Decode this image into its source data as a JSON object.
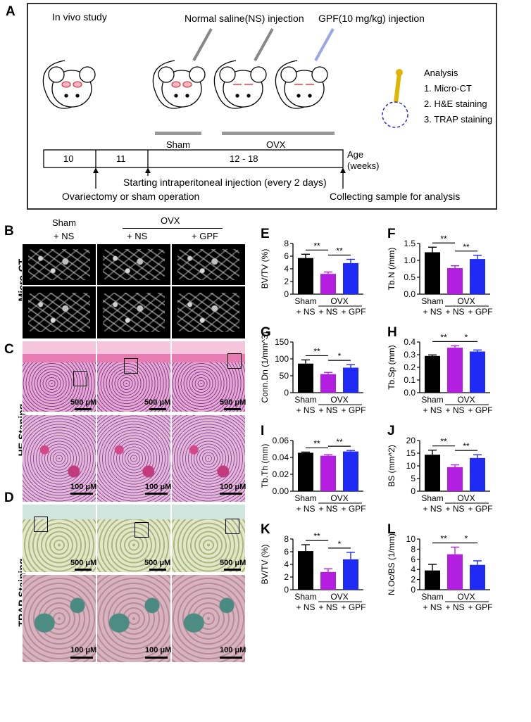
{
  "panel_a": {
    "label": "A",
    "in_vivo": "In vivo study",
    "ns_injection": "Normal saline(NS) injection",
    "gpf_injection": "GPF(10 mg/kg) injection",
    "analysis_title": "Analysis",
    "analysis_items": [
      "1. Micro-CT",
      "2. H&E staining",
      "3. TRAP staining"
    ],
    "sham": "Sham",
    "ovx": "OVX",
    "timeline": [
      "10",
      "11",
      "12 - 18"
    ],
    "age": "Age",
    "weeks": "(weeks)",
    "injection_note": "Starting intraperitoneal injection (every 2 days)",
    "surgery_note": "Ovariectomy or sham operation",
    "collect_note": "Collecting sample for analysis"
  },
  "images": {
    "label_b": "B",
    "label_c": "C",
    "label_d": "D",
    "sham_line1": "Sham",
    "sham_line2": "+ NS",
    "ovx": "OVX",
    "ovx_ns": "+ NS",
    "ovx_gpf": "+ GPF",
    "row_microct": "Micro-CT",
    "row_he": "HE Staning",
    "row_trap": "TRAP Staining",
    "scale_500": "500 μM",
    "scale_100": "100 μM"
  },
  "chart_data": [
    {
      "id": "E",
      "type": "bar",
      "categories": [
        "Sham + NS",
        "OVX + NS",
        "OVX + GPF"
      ],
      "values": [
        5.7,
        3.2,
        4.9
      ],
      "errors": [
        0.6,
        0.3,
        0.6
      ],
      "ylabel": "BV/TV (%)",
      "ylim": [
        0,
        8
      ],
      "yticks": [
        "0",
        "2",
        "4",
        "6",
        "8"
      ],
      "colors": [
        "#000000",
        "#b31fe0",
        "#1f2bf5"
      ],
      "sig": [
        {
          "from": 0,
          "to": 1,
          "label": "**"
        },
        {
          "from": 1,
          "to": 2,
          "label": "**"
        }
      ]
    },
    {
      "id": "F",
      "type": "bar",
      "categories": [
        "Sham + NS",
        "OVX + NS",
        "OVX + GPF"
      ],
      "values": [
        1.24,
        0.77,
        1.04
      ],
      "errors": [
        0.15,
        0.07,
        0.11
      ],
      "ylabel": "Tb.N (/mm)",
      "ylim": [
        0,
        1.5
      ],
      "yticks": [
        "0.0",
        "0.5",
        "1.0",
        "1.5"
      ],
      "colors": [
        "#000000",
        "#b31fe0",
        "#1f2bf5"
      ],
      "sig": [
        {
          "from": 0,
          "to": 1,
          "label": "**"
        },
        {
          "from": 1,
          "to": 2,
          "label": "**"
        }
      ]
    },
    {
      "id": "G",
      "type": "bar",
      "categories": [
        "Sham + NS",
        "OVX + NS",
        "OVX + GPF"
      ],
      "values": [
        86,
        55,
        74
      ],
      "errors": [
        11,
        5,
        9
      ],
      "ylabel": "Conn.Dn (1/mm^3)",
      "ylim": [
        0,
        150
      ],
      "yticks": [
        "0",
        "50",
        "100",
        "150"
      ],
      "colors": [
        "#000000",
        "#b31fe0",
        "#1f2bf5"
      ],
      "sig": [
        {
          "from": 0,
          "to": 1,
          "label": "**"
        },
        {
          "from": 1,
          "to": 2,
          "label": "*"
        }
      ]
    },
    {
      "id": "H",
      "type": "bar",
      "categories": [
        "Sham + NS",
        "OVX + NS",
        "OVX + GPF"
      ],
      "values": [
        0.29,
        0.355,
        0.325
      ],
      "errors": [
        0.008,
        0.015,
        0.012
      ],
      "ylabel": "Tb.Sp (mm)",
      "ylim": [
        0,
        0.4
      ],
      "yticks": [
        "0.0",
        "0.1",
        "0.2",
        "0.3",
        "0.4"
      ],
      "colors": [
        "#000000",
        "#b31fe0",
        "#1f2bf5"
      ],
      "sig": [
        {
          "from": 0,
          "to": 1,
          "label": "**"
        },
        {
          "from": 1,
          "to": 2,
          "label": "*"
        }
      ]
    },
    {
      "id": "I",
      "type": "bar",
      "categories": [
        "Sham + NS",
        "OVX + NS",
        "OVX + GPF"
      ],
      "values": [
        0.0455,
        0.042,
        0.047
      ],
      "errors": [
        0.0008,
        0.0012,
        0.0012
      ],
      "ylabel": "Tb.Th (mm)",
      "ylim": [
        0,
        0.06
      ],
      "yticks": [
        "0.00",
        "0.02",
        "0.04",
        "0.06"
      ],
      "colors": [
        "#000000",
        "#b31fe0",
        "#1f2bf5"
      ],
      "sig": [
        {
          "from": 0,
          "to": 1,
          "label": "**"
        },
        {
          "from": 1,
          "to": 2,
          "label": "**"
        }
      ]
    },
    {
      "id": "J",
      "type": "bar",
      "categories": [
        "Sham + NS",
        "OVX + NS",
        "OVX + GPF"
      ],
      "values": [
        14.4,
        9.5,
        13.1
      ],
      "errors": [
        1.8,
        0.9,
        1.3
      ],
      "ylabel": "BS (mm^2)",
      "ylim": [
        0,
        20
      ],
      "yticks": [
        "0",
        "5",
        "10",
        "15",
        "20"
      ],
      "colors": [
        "#000000",
        "#b31fe0",
        "#1f2bf5"
      ],
      "sig": [
        {
          "from": 0,
          "to": 1,
          "label": "**"
        },
        {
          "from": 1,
          "to": 2,
          "label": "**"
        }
      ]
    },
    {
      "id": "K",
      "type": "bar",
      "categories": [
        "Sham + NS",
        "OVX + NS",
        "OVX + GPF"
      ],
      "values": [
        6.1,
        2.8,
        4.8
      ],
      "errors": [
        1.0,
        0.5,
        1.1
      ],
      "ylabel": "BV/TV (%)",
      "ylim": [
        0,
        8
      ],
      "yticks": [
        "0",
        "2",
        "4",
        "6",
        "8"
      ],
      "colors": [
        "#000000",
        "#b31fe0",
        "#1f2bf5"
      ],
      "sig": [
        {
          "from": 0,
          "to": 1,
          "label": "**"
        },
        {
          "from": 1,
          "to": 2,
          "label": "*"
        }
      ]
    },
    {
      "id": "L",
      "type": "bar",
      "categories": [
        "Sham + NS",
        "OVX + NS",
        "OVX + GPF"
      ],
      "values": [
        3.8,
        7.0,
        4.9
      ],
      "errors": [
        1.2,
        1.4,
        0.8
      ],
      "ylabel": "N.Oc/BS (1/mm)",
      "ylim": [
        0,
        10
      ],
      "yticks": [
        "0",
        "2",
        "4",
        "6",
        "8",
        "10"
      ],
      "colors": [
        "#000000",
        "#b31fe0",
        "#1f2bf5"
      ],
      "sig": [
        {
          "from": 0,
          "to": 1,
          "label": "**"
        },
        {
          "from": 1,
          "to": 2,
          "label": "*"
        }
      ]
    }
  ],
  "chart_labels": {
    "sham": "Sham",
    "ns1": "+ NS",
    "ovx": "OVX",
    "ns2": "+ NS",
    "gpf": "+ GPF"
  }
}
